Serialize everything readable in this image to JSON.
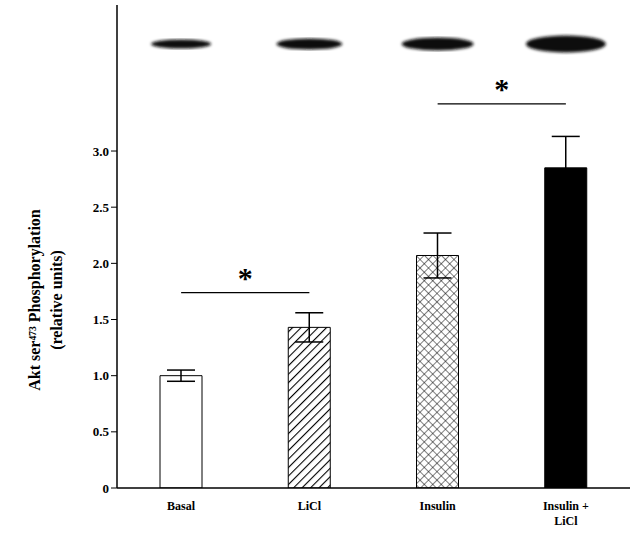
{
  "chart_data": {
    "type": "bar",
    "y_label": [
      "Akt ser⁴⁷³ Phosphorylation",
      "(relative units)"
    ],
    "categories": [
      "Basal",
      "LiCl",
      "Insulin",
      "Insulin + LiCl"
    ],
    "values": [
      1.0,
      1.43,
      2.07,
      2.85
    ],
    "errors": [
      0.05,
      0.13,
      0.2,
      0.28
    ],
    "colors": [
      "#ffffff",
      "#ffffff",
      "#ffffff",
      "#000000"
    ],
    "ylim": [
      0,
      4.3
    ],
    "yticks": [
      0,
      0.5,
      {
        "value": 1,
        "label": "1.0"
      },
      1.5,
      {
        "value": 2,
        "label": "2.0"
      },
      2.5,
      {
        "value": 3,
        "label": "3.0"
      }
    ],
    "annotations": [
      {
        "text": "*",
        "from": "Basal",
        "to": "LiCl",
        "y": 1.74
      },
      {
        "text": "*",
        "from": "Insulin",
        "to": "Insulin + LiCl",
        "y": 3.42
      }
    ]
  }
}
